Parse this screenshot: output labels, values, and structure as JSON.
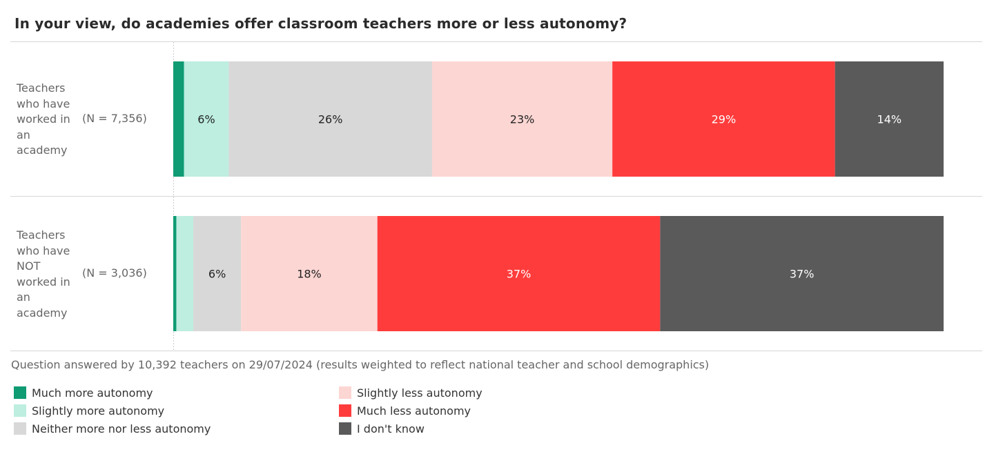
{
  "chart_data": {
    "type": "bar",
    "orientation": "horizontal",
    "stacked": true,
    "normalized": true,
    "title": "In your view, do academies offer classroom teachers more or less autonomy?",
    "categories": [
      {
        "label": "Teachers who have worked in an academy",
        "n": "(N = 7,356)"
      },
      {
        "label": "Teachers who have NOT worked in an academy",
        "n": "(N = 3,036)"
      }
    ],
    "series": [
      {
        "name": "Much more autonomy",
        "color": "#0f9b74",
        "values": [
          1.4,
          0.4
        ],
        "labels": [
          "",
          ""
        ]
      },
      {
        "name": "Slightly more autonomy",
        "color": "#bdeee0",
        "values": [
          5.8,
          2.2
        ],
        "labels": [
          "6%",
          ""
        ]
      },
      {
        "name": "Neither more nor less autonomy",
        "color": "#d8d8d8",
        "values": [
          26.4,
          6.2
        ],
        "labels": [
          "26%",
          "6%"
        ]
      },
      {
        "name": "Slightly less autonomy",
        "color": "#fcd6d3",
        "values": [
          23.4,
          17.7
        ],
        "labels": [
          "23%",
          "18%"
        ]
      },
      {
        "name": "Much less autonomy",
        "color": "#ff3c3c",
        "values": [
          28.9,
          36.7
        ],
        "labels": [
          "29%",
          "37%"
        ]
      },
      {
        "name": "I don't know",
        "color": "#5a5a5a",
        "values": [
          14.1,
          36.8
        ],
        "labels": [
          "14%",
          "37%"
        ]
      }
    ],
    "label_colors": [
      "#222222",
      "#222222",
      "#222222",
      "#222222",
      "#ffffff",
      "#ffffff"
    ],
    "xlim": [
      0,
      100
    ],
    "legend_position": "bottom",
    "footnote": "Question answered by 10,392 teachers on 29/07/2024 (results weighted to reflect national teacher and school demographics)"
  }
}
